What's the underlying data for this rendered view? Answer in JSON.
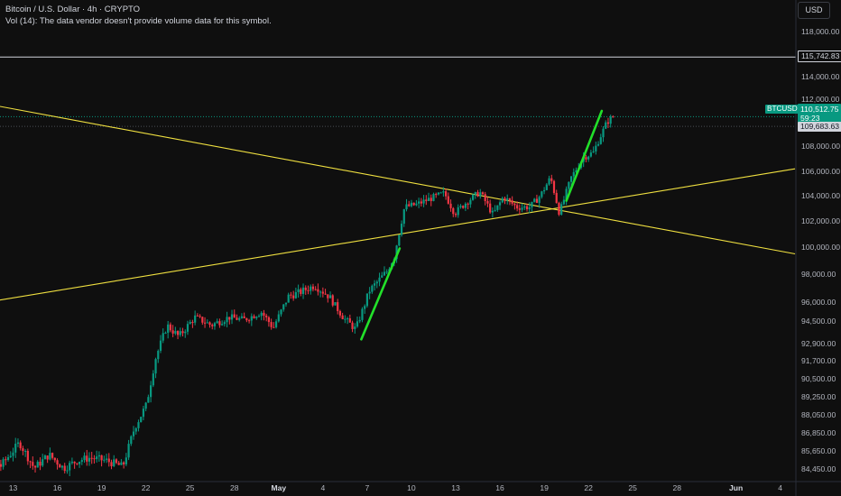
{
  "legend": {
    "title": "Bitcoin / U.S. Dollar · 4h · CRYPTO",
    "volume_note": "Vol (14): The data vendor doesn't provide volume data for this symbol."
  },
  "currency_button": "USD",
  "price_axis": {
    "ticks": [
      {
        "label": "118,000.00",
        "value": 118000
      },
      {
        "label": "114,000.00",
        "value": 114000
      },
      {
        "label": "112,000.00",
        "value": 112000
      },
      {
        "label": "108,000.00",
        "value": 108000
      },
      {
        "label": "106,000.00",
        "value": 106000
      },
      {
        "label": "104,000.00",
        "value": 104000
      },
      {
        "label": "102,000.00",
        "value": 102000
      },
      {
        "label": "100,000.00",
        "value": 100000
      },
      {
        "label": "98,000.00",
        "value": 98000
      },
      {
        "label": "96,000.00",
        "value": 96000
      },
      {
        "label": "94,500.00",
        "value": 94500
      },
      {
        "label": "92,900.00",
        "value": 92900
      },
      {
        "label": "91,700.00",
        "value": 91700
      },
      {
        "label": "90,500.00",
        "value": 90500
      },
      {
        "label": "89,250.00",
        "value": 89250
      },
      {
        "label": "88,050.00",
        "value": 88050
      },
      {
        "label": "86,850.00",
        "value": 86850
      },
      {
        "label": "85,650.00",
        "value": 85650
      },
      {
        "label": "84,450.00",
        "value": 84450
      }
    ],
    "horizontal_level": "115,742.83",
    "symbol": "BTCUSD",
    "last_price": "110,512.75",
    "countdown": "59:23",
    "prev_price": "109,683.63"
  },
  "time_axis": {
    "ticks": [
      {
        "label": "13",
        "day": 13
      },
      {
        "label": "16",
        "day": 16
      },
      {
        "label": "19",
        "day": 19
      },
      {
        "label": "22",
        "day": 22
      },
      {
        "label": "25",
        "day": 25
      },
      {
        "label": "28",
        "day": 28
      },
      {
        "label": "May",
        "day": 31,
        "bold": true
      },
      {
        "label": "4",
        "day": 34
      },
      {
        "label": "7",
        "day": 37
      },
      {
        "label": "10",
        "day": 40
      },
      {
        "label": "13",
        "day": 43
      },
      {
        "label": "16",
        "day": 46
      },
      {
        "label": "19",
        "day": 49
      },
      {
        "label": "22",
        "day": 52
      },
      {
        "label": "25",
        "day": 55
      },
      {
        "label": "28",
        "day": 58
      },
      {
        "label": "Jun",
        "day": 62,
        "bold": true
      },
      {
        "label": "4",
        "day": 65
      }
    ]
  },
  "chart_data": {
    "type": "candlestick",
    "symbol": "BTCUSD",
    "timeframe": "4h",
    "colors": {
      "up": "#089981",
      "down": "#f23645",
      "trendline": "#f0e040",
      "arrow": "#22e02a",
      "level": "#d1d4dc",
      "background": "#0f0f0f"
    },
    "path_keypoints": [
      {
        "day": 9.0,
        "price": 85200
      },
      {
        "day": 10.5,
        "price": 84400
      },
      {
        "day": 11.5,
        "price": 85800
      },
      {
        "day": 12.3,
        "price": 84600
      },
      {
        "day": 13.6,
        "price": 86200
      },
      {
        "day": 14.6,
        "price": 84500
      },
      {
        "day": 15.6,
        "price": 85400
      },
      {
        "day": 16.6,
        "price": 84500
      },
      {
        "day": 17.5,
        "price": 85000
      },
      {
        "day": 18.4,
        "price": 85200
      },
      {
        "day": 19.5,
        "price": 85000
      },
      {
        "day": 20.6,
        "price": 84600
      },
      {
        "day": 21.4,
        "price": 87200
      },
      {
        "day": 22.2,
        "price": 88700
      },
      {
        "day": 22.8,
        "price": 91800
      },
      {
        "day": 23.6,
        "price": 94200
      },
      {
        "day": 24.4,
        "price": 93400
      },
      {
        "day": 25.5,
        "price": 94800
      },
      {
        "day": 26.6,
        "price": 94200
      },
      {
        "day": 27.8,
        "price": 94800
      },
      {
        "day": 28.8,
        "price": 94600
      },
      {
        "day": 30.0,
        "price": 95200
      },
      {
        "day": 30.8,
        "price": 94000
      },
      {
        "day": 31.8,
        "price": 96400
      },
      {
        "day": 32.6,
        "price": 96700
      },
      {
        "day": 33.6,
        "price": 97200
      },
      {
        "day": 34.6,
        "price": 96400
      },
      {
        "day": 35.6,
        "price": 94700
      },
      {
        "day": 36.4,
        "price": 93900
      },
      {
        "day": 37.3,
        "price": 96800
      },
      {
        "day": 38.5,
        "price": 98200
      },
      {
        "day": 39.0,
        "price": 99300
      },
      {
        "day": 39.7,
        "price": 103100
      },
      {
        "day": 40.5,
        "price": 103300
      },
      {
        "day": 41.5,
        "price": 103800
      },
      {
        "day": 42.4,
        "price": 104200
      },
      {
        "day": 43.1,
        "price": 102600
      },
      {
        "day": 43.9,
        "price": 103500
      },
      {
        "day": 44.8,
        "price": 104300
      },
      {
        "day": 45.7,
        "price": 102500
      },
      {
        "day": 46.4,
        "price": 103900
      },
      {
        "day": 47.3,
        "price": 103100
      },
      {
        "day": 48.2,
        "price": 103100
      },
      {
        "day": 48.9,
        "price": 104000
      },
      {
        "day": 49.6,
        "price": 105500
      },
      {
        "day": 50.2,
        "price": 102600
      },
      {
        "day": 51.0,
        "price": 105500
      },
      {
        "day": 51.8,
        "price": 107100
      },
      {
        "day": 52.5,
        "price": 107500
      },
      {
        "day": 53.4,
        "price": 110000
      },
      {
        "day": 53.8,
        "price": 110512.75
      }
    ],
    "trendlines": [
      {
        "name": "descending",
        "from": {
          "day": 0,
          "price": 114300
        },
        "to": {
          "day": 66,
          "price": 99500
        }
      },
      {
        "name": "ascending",
        "from": {
          "day": 0,
          "price": 93900
        },
        "to": {
          "day": 66,
          "price": 106200
        }
      }
    ],
    "arrows": [
      {
        "from": {
          "day": 36.6,
          "price": 93200
        },
        "to": {
          "day": 39.2,
          "price": 99900
        }
      },
      {
        "from": {
          "day": 50.5,
          "price": 103600
        },
        "to": {
          "day": 52.9,
          "price": 111000
        }
      }
    ],
    "horizontal_levels": [
      115742.83,
      110512.75
    ]
  }
}
